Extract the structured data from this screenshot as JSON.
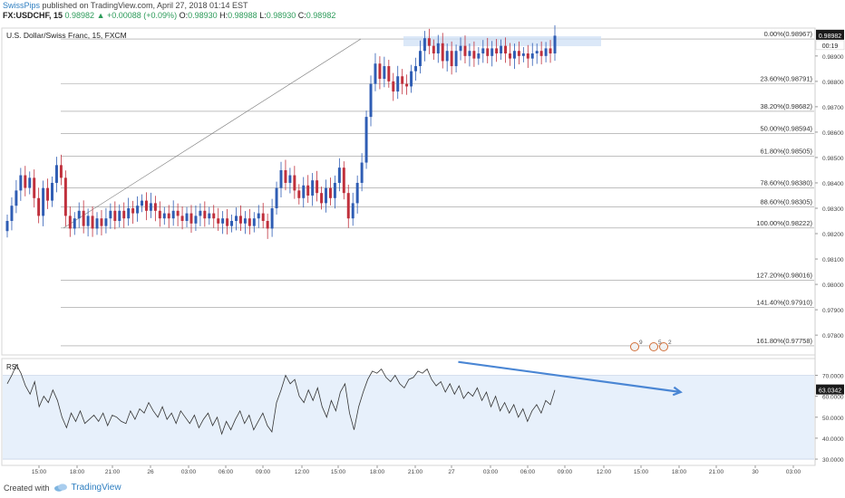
{
  "header": {
    "user": "SwissPips",
    "published": "published on TradingView.com, April 27, 2018 01:14 EST",
    "symbol": "FX:USDCHF, 15",
    "last": "0.98982",
    "change": "▲ +0.00088 (+0.09%)",
    "o_label": "O:",
    "o": "0.98930",
    "h_label": "H:",
    "h": "0.98988",
    "l_label": "L:",
    "l": "0.98930",
    "c_label": "C:",
    "c": "0.98982"
  },
  "footer": {
    "created_with": "Created with",
    "brand": "TradingView"
  },
  "colors": {
    "up": "#2f5db4",
    "down": "#c0303c",
    "rsi_line": "#333333",
    "rsi_band": "#e7f0fb",
    "trend": "#4a86d4",
    "fib_line": "#999999"
  },
  "chart_data": [
    {
      "type": "candlestick",
      "title": "U.S. Dollar/Swiss Franc, 15, FXCM",
      "ylim": [
        0.97722,
        0.9901
      ],
      "y_ticks": [
        "0.98900",
        "0.98800",
        "0.98700",
        "0.98600",
        "0.98500",
        "0.98400",
        "0.98300",
        "0.98200",
        "0.98100",
        "0.98000",
        "0.97900",
        "0.97800"
      ],
      "x_ticks": [
        "15:00",
        "18:00",
        "21:00",
        "26",
        "03:00",
        "06:00",
        "09:00",
        "12:00",
        "15:00",
        "18:00",
        "21:00",
        "27",
        "03:00",
        "06:00",
        "09:00",
        "12:00",
        "15:00",
        "18:00",
        "21:00",
        "30",
        "03:00"
      ],
      "price_label": "0.98982",
      "countdown": "00:19",
      "fib_levels": [
        {
          "label": "0.00%(0.98967)",
          "value": 0.98967
        },
        {
          "label": "23.60%(0.98791)",
          "value": 0.98791
        },
        {
          "label": "38.20%(0.98682)",
          "value": 0.98682
        },
        {
          "label": "50.00%(0.98594)",
          "value": 0.98594
        },
        {
          "label": "61.80%(0.98505)",
          "value": 0.98505
        },
        {
          "label": "78.60%(0.98380)",
          "value": 0.9838
        },
        {
          "label": "88.60%(0.98305)",
          "value": 0.98305
        },
        {
          "label": "100.00%(0.98222)",
          "value": 0.98222
        },
        {
          "label": "127.20%(0.98016)",
          "value": 0.98016
        },
        {
          "label": "141.40%(0.97910)",
          "value": 0.9791
        },
        {
          "label": "161.80%(0.97758)",
          "value": 0.97758
        }
      ],
      "fib_anchor_text": "",
      "event_icons": [
        "9",
        "5",
        "2"
      ],
      "closes": [
        0.9825,
        0.9831,
        0.9837,
        0.9843,
        0.9838,
        0.9842,
        0.9834,
        0.9827,
        0.9838,
        0.9833,
        0.984,
        0.9847,
        0.9842,
        0.9827,
        0.9822,
        0.9826,
        0.9829,
        0.9823,
        0.9827,
        0.9822,
        0.9826,
        0.9823,
        0.9826,
        0.9829,
        0.9825,
        0.9829,
        0.9826,
        0.983,
        0.9828,
        0.9831,
        0.9833,
        0.9829,
        0.9832,
        0.9829,
        0.9826,
        0.9828,
        0.9826,
        0.9829,
        0.9827,
        0.9825,
        0.9828,
        0.9824,
        0.9827,
        0.9829,
        0.9826,
        0.9828,
        0.9826,
        0.9824,
        0.9826,
        0.9823,
        0.9825,
        0.9827,
        0.9824,
        0.9826,
        0.9823,
        0.9826,
        0.9828,
        0.9825,
        0.9822,
        0.983,
        0.9838,
        0.9845,
        0.984,
        0.9843,
        0.9837,
        0.9834,
        0.9839,
        0.9835,
        0.9841,
        0.9836,
        0.9832,
        0.9838,
        0.9834,
        0.984,
        0.9846,
        0.9836,
        0.9826,
        0.9832,
        0.984,
        0.9848,
        0.9866,
        0.9879,
        0.9887,
        0.9881,
        0.9886,
        0.988,
        0.9876,
        0.9882,
        0.9879,
        0.9878,
        0.9884,
        0.9886,
        0.9892,
        0.9897,
        0.9894,
        0.9891,
        0.9895,
        0.9888,
        0.9892,
        0.9886,
        0.9892,
        0.9894,
        0.989,
        0.9892,
        0.9889,
        0.9891,
        0.9893,
        0.989,
        0.9893,
        0.9891,
        0.9894,
        0.9891,
        0.9889,
        0.9892,
        0.989,
        0.9891,
        0.9889,
        0.9891,
        0.9892,
        0.989,
        0.9893,
        0.9891,
        0.9898
      ]
    },
    {
      "type": "line",
      "title": "RSI",
      "ylim": [
        27,
        78
      ],
      "y_ticks": [
        "70.0000",
        "60.0000",
        "50.0000",
        "40.0000",
        "30.0000"
      ],
      "band": [
        30,
        70
      ],
      "last_label": "63.0342",
      "trendline": [
        [
          76.4,
          56.4
        ],
        [
          62.0,
          84.2
        ]
      ],
      "values": [
        66,
        70,
        75,
        71,
        65,
        61,
        67,
        55,
        60,
        57,
        63,
        58,
        50,
        45,
        52,
        48,
        53,
        47,
        49,
        51,
        48,
        52,
        46,
        51,
        50,
        48,
        47,
        53,
        49,
        54,
        52,
        57,
        53,
        50,
        55,
        49,
        52,
        47,
        53,
        50,
        47,
        51,
        45,
        49,
        52,
        46,
        50,
        42,
        48,
        44,
        49,
        53,
        47,
        51,
        44,
        48,
        52,
        46,
        43,
        57,
        63,
        70,
        66,
        68,
        60,
        57,
        63,
        58,
        64,
        55,
        50,
        58,
        53,
        62,
        66,
        52,
        44,
        55,
        62,
        68,
        72,
        71,
        73,
        69,
        67,
        70,
        66,
        64,
        68,
        69,
        72,
        71,
        73,
        68,
        65,
        67,
        62,
        66,
        61,
        65,
        59,
        62,
        60,
        64,
        58,
        62,
        55,
        60,
        53,
        57,
        52,
        56,
        50,
        54,
        48,
        53,
        56,
        52,
        58,
        56,
        63
      ]
    }
  ]
}
